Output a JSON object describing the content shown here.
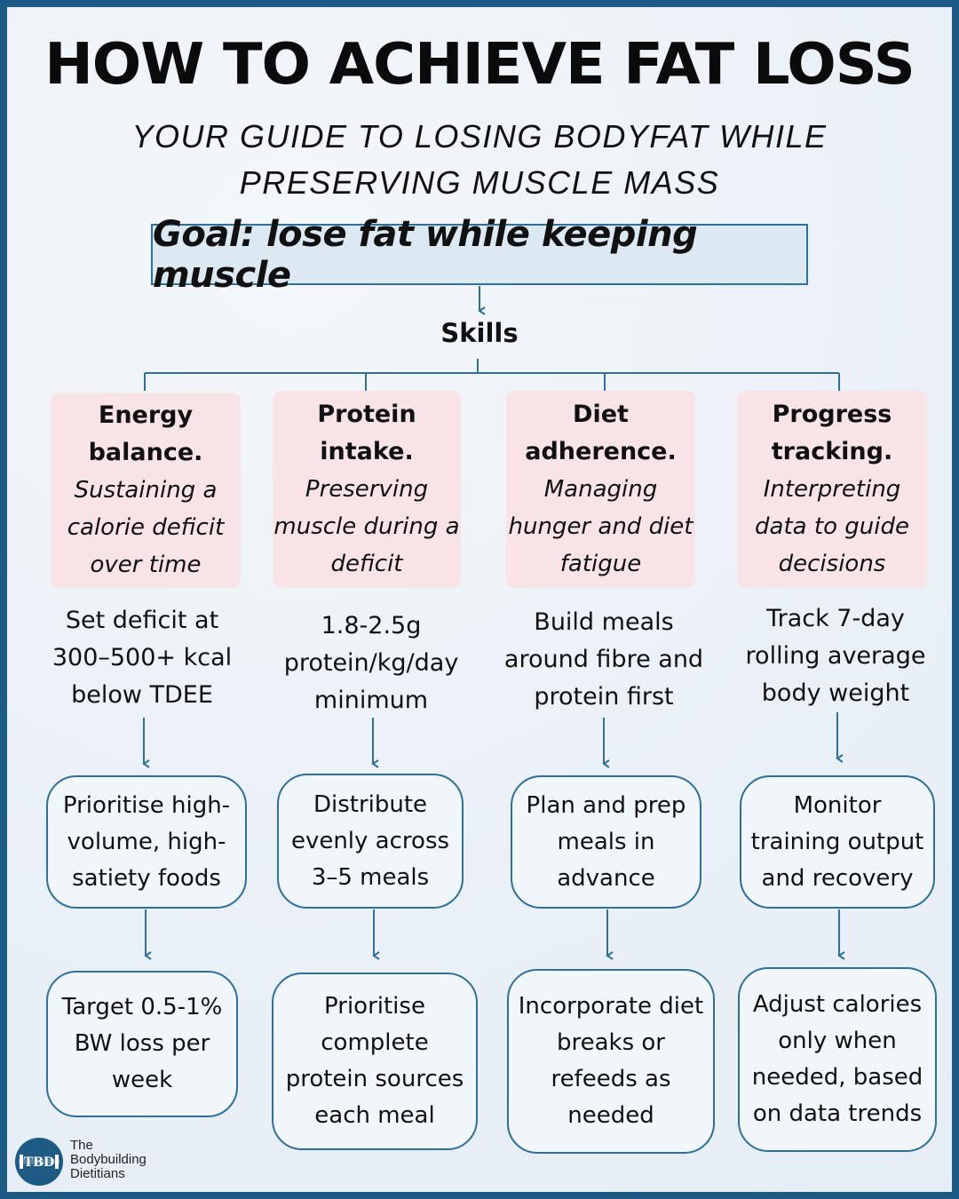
{
  "header": {
    "title": "HOW TO ACHIEVE FAT LOSS",
    "subtitle": "YOUR GUIDE TO LOSING BODYFAT WHILE PRESERVING MUSCLE MASS"
  },
  "goal": "Goal: lose fat while keeping muscle",
  "skills_label": "Skills",
  "columns": [
    {
      "skill_title": "Energy balance.",
      "skill_desc": "Sustaining a calorie deficit over time",
      "step1": "Set deficit at 300–500+ kcal below TDEE",
      "step2": "Prioritise high-volume, high-satiety foods",
      "step3": "Target 0.5-1% BW loss per week"
    },
    {
      "skill_title": "Protein intake.",
      "skill_desc": "Preserving muscle during a deficit",
      "step1": "1.8-2.5g protein/kg/day minimum",
      "step2": "Distribute evenly across 3–5 meals",
      "step3": "Prioritise complete protein sources each meal"
    },
    {
      "skill_title": "Diet adherence.",
      "skill_desc": "Managing hunger and diet fatigue",
      "step1": "Build meals around fibre and protein first",
      "step2": "Plan and prep meals in advance",
      "step3": "Incorporate diet breaks or refeeds as needed"
    },
    {
      "skill_title": "Progress tracking.",
      "skill_desc": "Interpreting data to guide decisions",
      "step1": "Track 7-day rolling average body weight",
      "step2": "Monitor training output and recovery",
      "step3": "Adjust calories only when needed, based on data trends"
    }
  ],
  "logo": {
    "icon": "tbd-dumbbell-logo-icon",
    "initials": "TBD",
    "line1": "The",
    "line2": "Bodybuilding",
    "line3": "Dietitians"
  },
  "colors": {
    "frame": "#1d5b85",
    "accent": "#2e6f9c",
    "skill_fill": "#f8e4e6",
    "goal_fill": "#dce9f3"
  }
}
